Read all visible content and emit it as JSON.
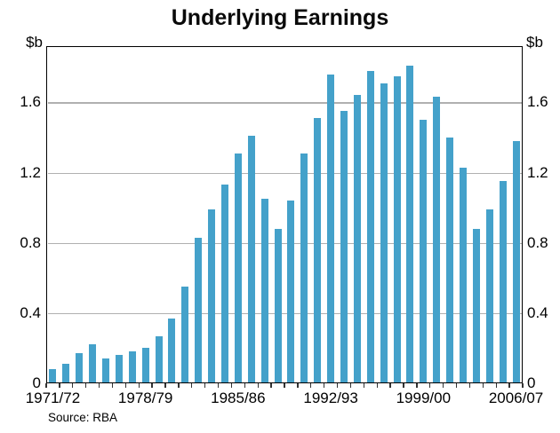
{
  "title": "Underlying Earnings",
  "source": "Source: RBA",
  "y_axis": {
    "unit_left": "$b",
    "unit_right": "$b",
    "tick_labels": [
      "0",
      "0.4",
      "0.8",
      "1.2",
      "1.6"
    ],
    "tick_values": [
      0,
      0.4,
      0.8,
      1.2,
      1.6
    ]
  },
  "x_axis": {
    "tick_labels": [
      "1971/72",
      "1978/79",
      "1985/86",
      "1992/93",
      "1999/00",
      "2006/07"
    ],
    "label_bar_indices": [
      0,
      7,
      14,
      21,
      28,
      35
    ]
  },
  "colors": {
    "bar": "#44a1ca",
    "gridline": "#b0b0b0",
    "axis": "#000000"
  },
  "chart_data": {
    "type": "bar",
    "title": "Underlying Earnings",
    "ylabel": "$b",
    "ylim": [
      0,
      1.92
    ],
    "gridlines": [
      0.4,
      0.8,
      1.2,
      1.6
    ],
    "legend": null,
    "grid": true,
    "categories": [
      "1971/72",
      "1972/73",
      "1973/74",
      "1974/75",
      "1975/76",
      "1976/77",
      "1977/78",
      "1978/79",
      "1979/80",
      "1980/81",
      "1981/82",
      "1982/83",
      "1983/84",
      "1984/85",
      "1985/86",
      "1986/87",
      "1987/88",
      "1988/89",
      "1989/90",
      "1990/91",
      "1991/92",
      "1992/93",
      "1993/94",
      "1994/95",
      "1995/96",
      "1996/97",
      "1997/98",
      "1998/99",
      "1999/00",
      "2000/01",
      "2001/02",
      "2002/03",
      "2003/04",
      "2004/05",
      "2005/06",
      "2006/07"
    ],
    "values": [
      0.08,
      0.11,
      0.17,
      0.22,
      0.14,
      0.16,
      0.18,
      0.2,
      0.27,
      0.37,
      0.55,
      0.83,
      0.99,
      1.13,
      1.31,
      1.41,
      1.05,
      0.88,
      1.04,
      1.31,
      1.51,
      1.76,
      1.55,
      1.64,
      1.78,
      1.71,
      1.75,
      1.81,
      1.5,
      1.63,
      1.4,
      1.23,
      0.88,
      0.99,
      1.15,
      1.38
    ]
  }
}
